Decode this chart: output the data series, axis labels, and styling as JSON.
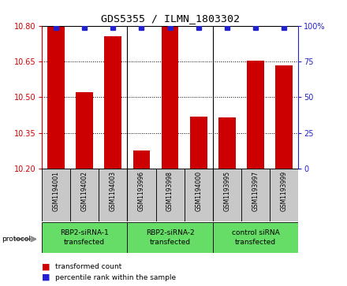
{
  "title": "GDS5355 / ILMN_1803302",
  "samples": [
    "GSM1194001",
    "GSM1194002",
    "GSM1194003",
    "GSM1193996",
    "GSM1193998",
    "GSM1194000",
    "GSM1193995",
    "GSM1193997",
    "GSM1193999"
  ],
  "bar_values": [
    10.795,
    10.52,
    10.755,
    10.275,
    10.795,
    10.42,
    10.415,
    10.655,
    10.635
  ],
  "ylim_left": [
    10.2,
    10.8
  ],
  "ylim_right": [
    0,
    100
  ],
  "yticks_left": [
    10.2,
    10.35,
    10.5,
    10.65,
    10.8
  ],
  "yticks_right": [
    0,
    25,
    50,
    75,
    100
  ],
  "bar_color": "#CC0000",
  "dot_color": "#2222CC",
  "bar_width": 0.6,
  "group_labels": [
    "RBP2-siRNA-1\ntransfected",
    "RBP2-siRNA-2\ntransfected",
    "control siRNA\ntransfected"
  ],
  "group_boundaries": [
    0,
    3,
    6,
    9
  ],
  "group_color": "#66DD66",
  "sample_box_color": "#C8C8C8",
  "legend_labels": [
    "transformed count",
    "percentile rank within the sample"
  ],
  "protocol_label": "protocol"
}
